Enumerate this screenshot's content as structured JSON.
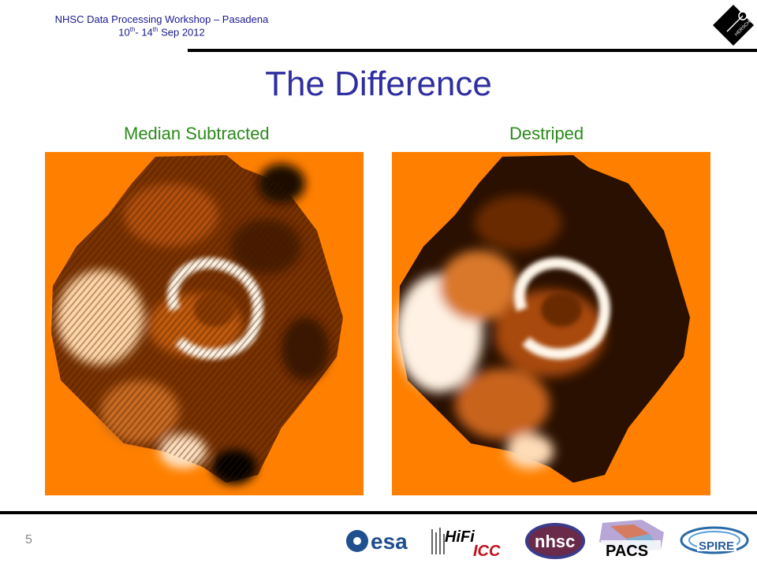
{
  "header": {
    "workshop": "NHSC Data Processing Workshop – Pasadena",
    "date_start": "10",
    "date_start_sup": "th",
    "date_mid": "- 14",
    "date_mid_sup": "th",
    "date_end": " Sep 2012"
  },
  "slide": {
    "title": "The Difference",
    "left_label": "Median Subtracted",
    "right_label": "Destriped",
    "page_number": "5"
  },
  "logos": {
    "esa": "esa",
    "hifi": "HiFi",
    "icc": "ICC",
    "nhsc": "nhsc",
    "pacs": "PACS",
    "spire": "SPIRE",
    "herschel": "HERSCHEL"
  },
  "colors": {
    "orange": "#ff8000",
    "title_blue": "#2e2e9f",
    "label_green": "#2a8a1a",
    "header_blue": "#1a1a8c"
  }
}
